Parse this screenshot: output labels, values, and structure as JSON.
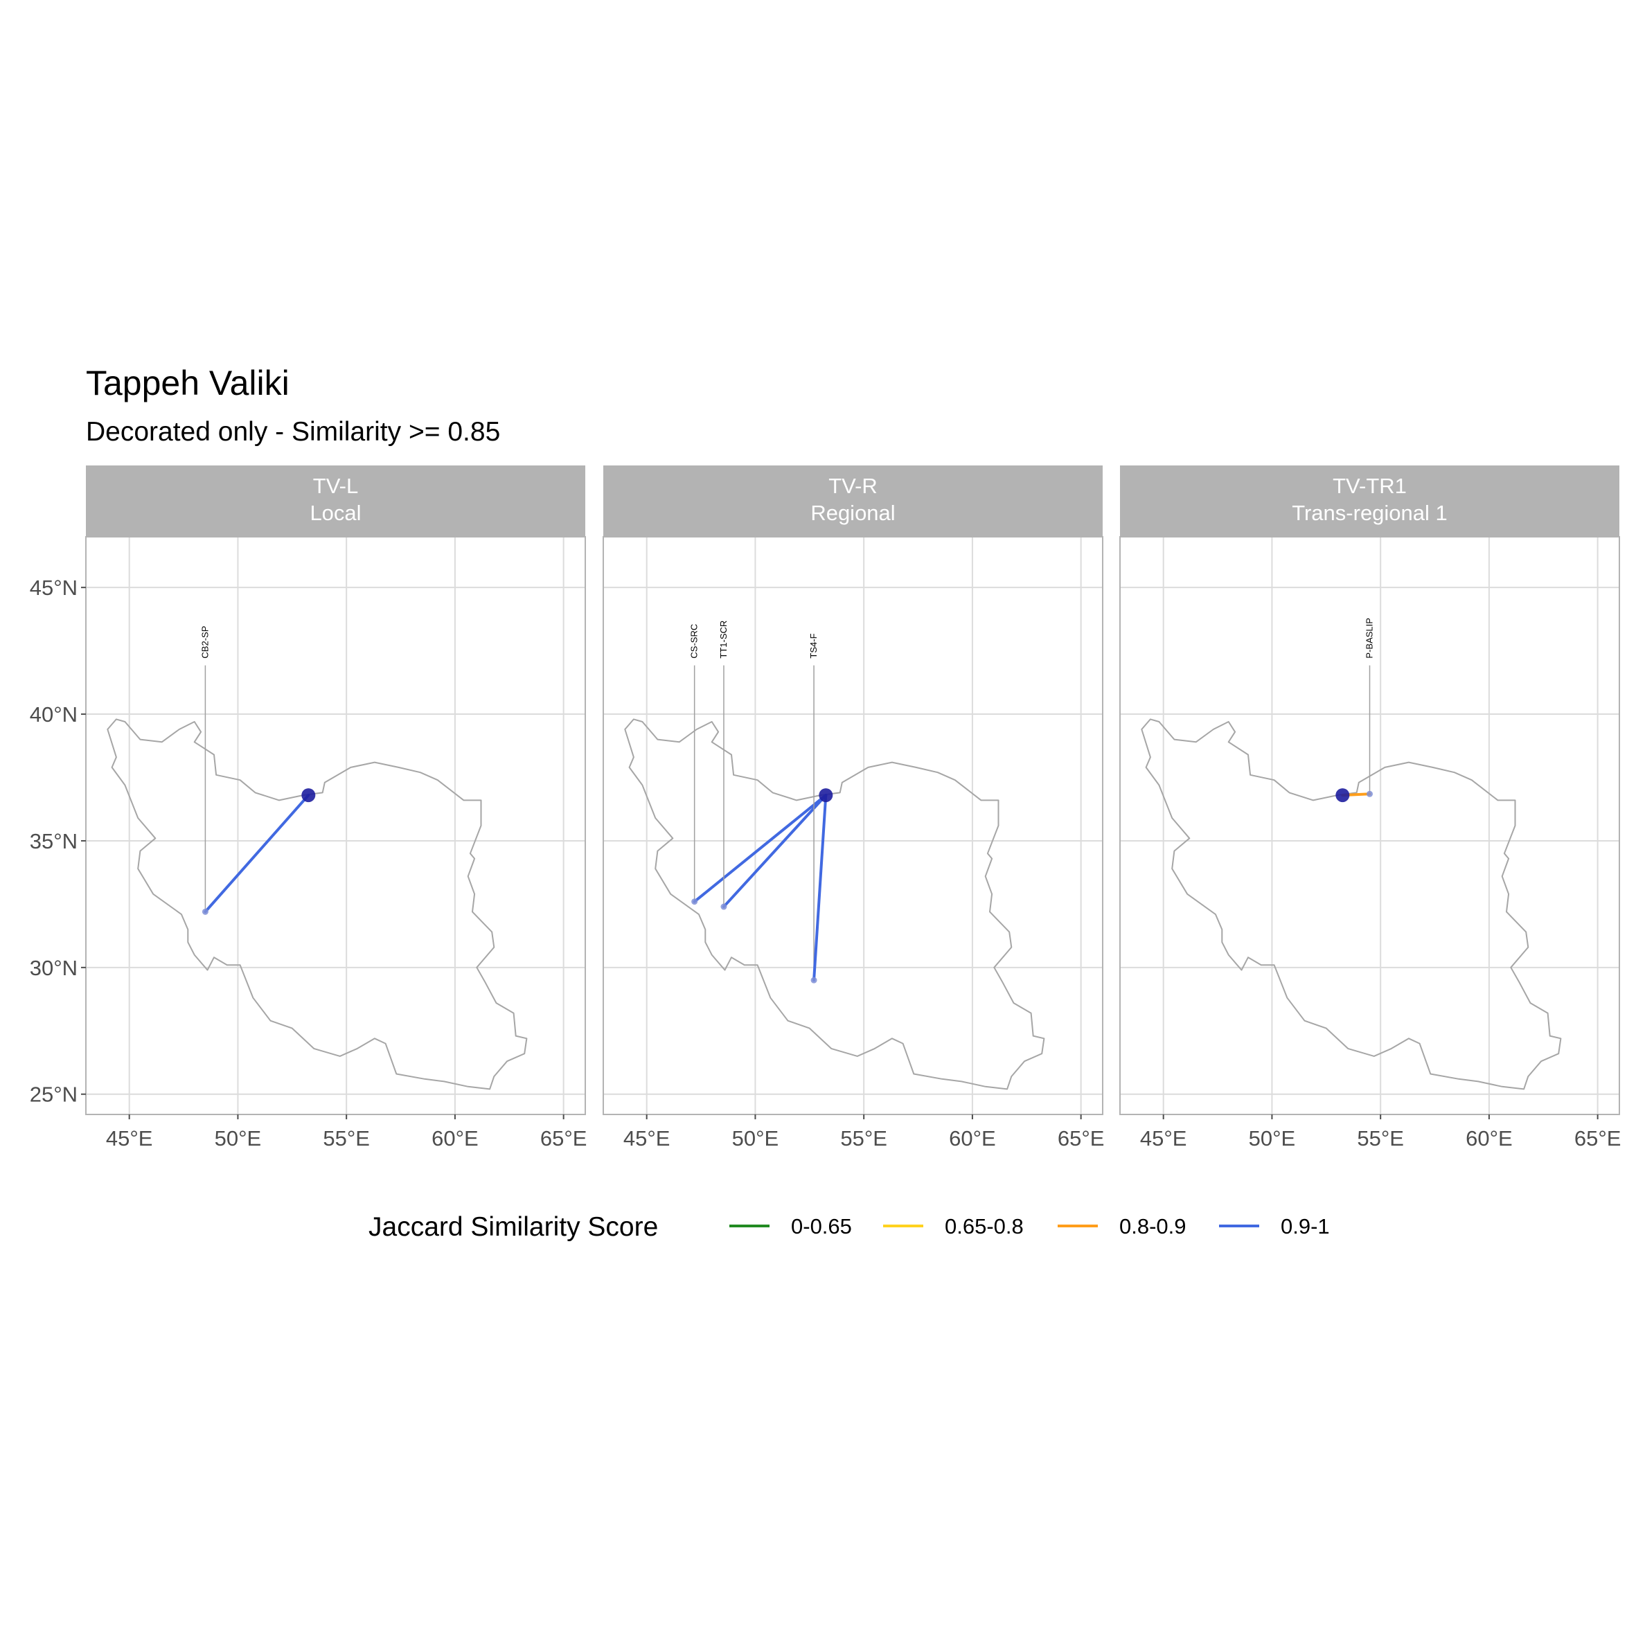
{
  "title": "Tappeh Valiki",
  "subtitle": "Decorated only - Similarity >= 0.85",
  "colors": {
    "0-0.65": "#228B22",
    "0.65-0.8": "#FFD21F",
    "0.8-0.9": "#FF9E1B",
    "0.9-1": "#4169E1",
    "origin": "#1E1E9E",
    "border": "#a6a6a6",
    "strip": "#b3b3b3",
    "grid": "#dcdcdc"
  },
  "chart_data": {
    "type": "map",
    "xlim": [
      43,
      66
    ],
    "ylim": [
      24.2,
      47.0
    ],
    "x_ticks": [
      45,
      50,
      55,
      60,
      65
    ],
    "y_ticks": [
      25,
      30,
      35,
      40,
      45
    ],
    "x_tick_labels": [
      "45°E",
      "50°E",
      "55°E",
      "60°E",
      "65°E"
    ],
    "y_tick_labels": [
      "25°N",
      "30°N",
      "35°N",
      "40°N",
      "45°N"
    ],
    "origin": {
      "lon": 53.25,
      "lat": 36.8
    },
    "label_lat": 42.2,
    "legend": {
      "title": "Jaccard Similarity Score",
      "entries": [
        "0-0.65",
        "0.65-0.8",
        "0.8-0.9",
        "0.9-1"
      ]
    },
    "panels": [
      {
        "strip_line1": "TV-L",
        "strip_line2": "Local",
        "links": [
          {
            "site": "CB2-SP",
            "lon": 48.5,
            "lat": 32.2,
            "category": "0.9-1"
          }
        ]
      },
      {
        "strip_line1": "TV-R",
        "strip_line2": "Regional",
        "links": [
          {
            "site": "CS-SRC",
            "lon": 47.2,
            "lat": 32.6,
            "category": "0.9-1"
          },
          {
            "site": "TT1-SCR",
            "lon": 48.55,
            "lat": 32.4,
            "category": "0.9-1"
          },
          {
            "site": "TS4-F",
            "lon": 52.7,
            "lat": 29.5,
            "category": "0.9-1"
          }
        ]
      },
      {
        "strip_line1": "TV-TR1",
        "strip_line2": "Trans-regional 1",
        "links": [
          {
            "site": "P-BASLIP",
            "lon": 54.5,
            "lat": 36.85,
            "category": "0.8-0.9"
          }
        ]
      }
    ]
  }
}
